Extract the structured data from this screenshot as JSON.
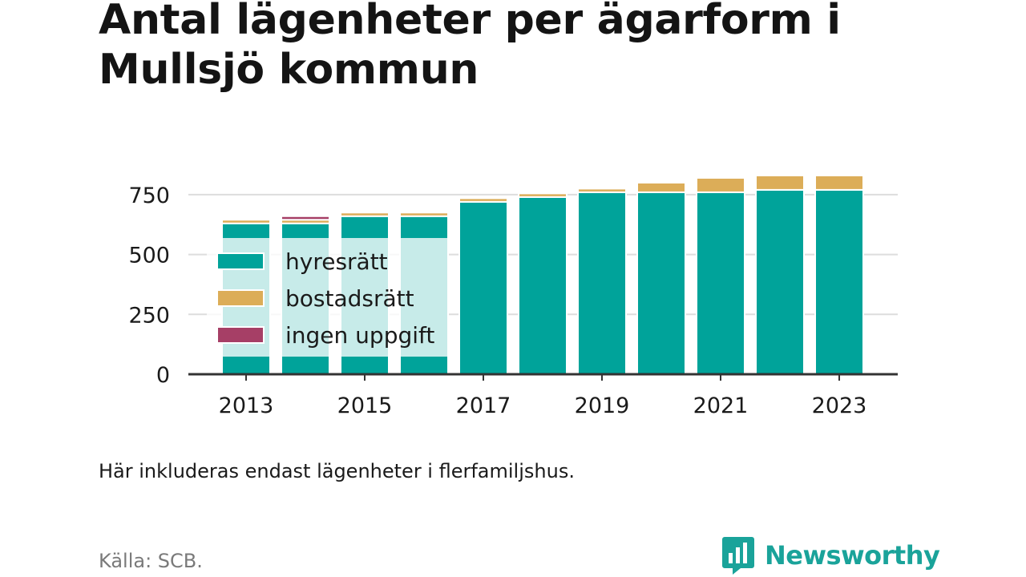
{
  "title": "Antal lägenheter per ägarform i Mullsjö kommun",
  "note": "Här inkluderas endast lägenheter i flerfamiljshus.",
  "source": "Källa: SCB.",
  "brand": {
    "name": "Newsworthy",
    "icon": "newsworthy-logo-icon",
    "color": "#1aa39a"
  },
  "chart_data": {
    "type": "bar",
    "stacked": true,
    "categories": [
      "2013",
      "2014",
      "2015",
      "2016",
      "2017",
      "2018",
      "2019",
      "2020",
      "2021",
      "2022",
      "2023"
    ],
    "x_tick_labels": [
      "2013",
      "2015",
      "2017",
      "2019",
      "2021",
      "2023"
    ],
    "series": [
      {
        "name": "hyresrätt",
        "color": "#00a39a",
        "values": [
          630,
          630,
          660,
          660,
          720,
          740,
          760,
          760,
          760,
          770,
          770
        ]
      },
      {
        "name": "bostadsrätt",
        "color": "#dcad58",
        "values": [
          15,
          15,
          15,
          15,
          15,
          15,
          15,
          40,
          60,
          60,
          60
        ]
      },
      {
        "name": "ingen uppgift",
        "color": "#a63f66",
        "values": [
          0,
          15,
          0,
          0,
          0,
          0,
          0,
          0,
          0,
          0,
          0
        ]
      }
    ],
    "y_ticks": [
      0,
      250,
      500,
      750
    ],
    "ylim": [
      0,
      860
    ],
    "grid": true,
    "legend_position": "inside-left"
  }
}
